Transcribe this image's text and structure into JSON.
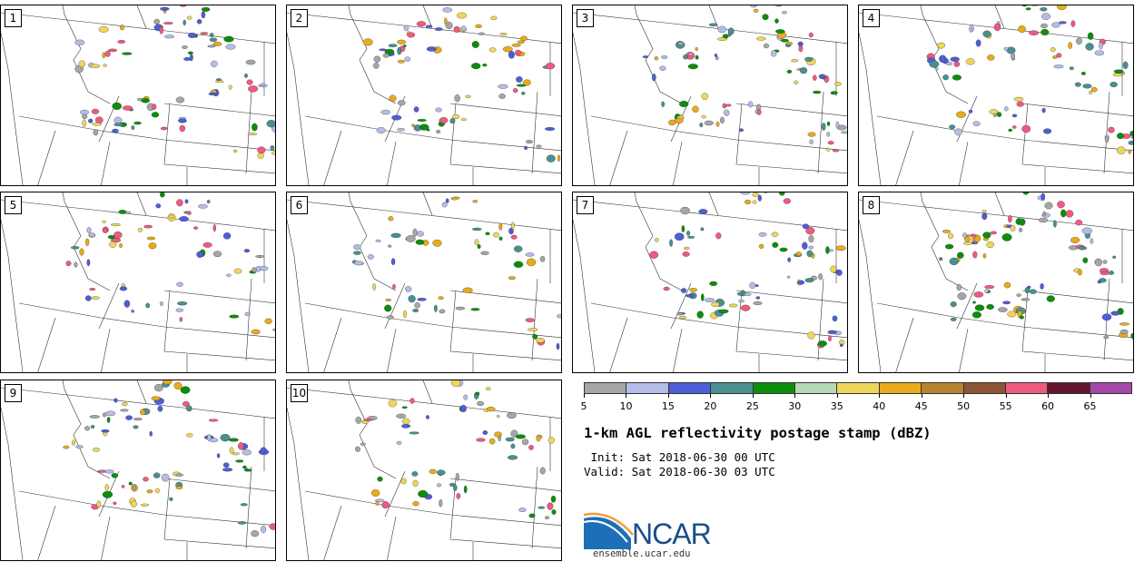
{
  "panels": [
    {
      "label": "1"
    },
    {
      "label": "2"
    },
    {
      "label": "3"
    },
    {
      "label": "4"
    },
    {
      "label": "5"
    },
    {
      "label": "6"
    },
    {
      "label": "7"
    },
    {
      "label": "8"
    },
    {
      "label": "9"
    },
    {
      "label": "10"
    }
  ],
  "colorbar": {
    "ticks": [
      "5",
      "10",
      "15",
      "20",
      "25",
      "30",
      "35",
      "40",
      "45",
      "50",
      "55",
      "60",
      "65"
    ],
    "colors": [
      "#a6a6a6",
      "#b4bce8",
      "#4e5ed6",
      "#4a9090",
      "#0b8f0b",
      "#b6d9b6",
      "#eed65a",
      "#eaab1a",
      "#b8832e",
      "#8c5636",
      "#f05a80",
      "#64152e",
      "#a648a6"
    ]
  },
  "title": "1-km AGL reflectivity postage stamp (dBZ)",
  "init": " Init: Sat 2018-06-30 00 UTC",
  "valid": "Valid: Sat 2018-06-30 03 UTC",
  "logo": {
    "text": "NCAR",
    "url": "ensemble.ucar.edu"
  }
}
